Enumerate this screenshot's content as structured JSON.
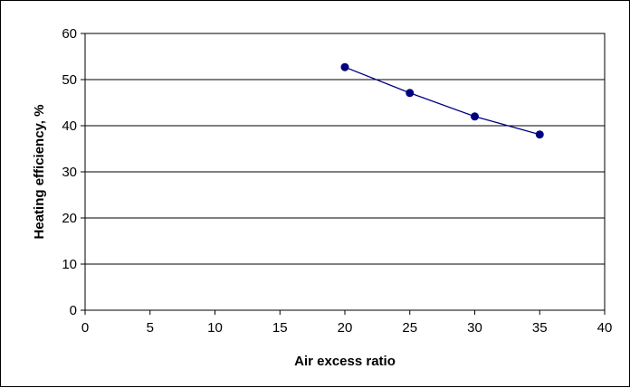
{
  "chart_data": {
    "type": "line",
    "title": "",
    "xlabel": "Air excess ratio",
    "ylabel": "Heating efficiency, %",
    "xlim": [
      0,
      40
    ],
    "ylim": [
      0,
      60
    ],
    "x_ticks": [
      0,
      5,
      10,
      15,
      20,
      25,
      30,
      35,
      40
    ],
    "y_ticks": [
      0,
      10,
      20,
      30,
      40,
      50,
      60
    ],
    "grid": "horizontal",
    "legend": "none",
    "series": [
      {
        "x": [
          20,
          25,
          30,
          35
        ],
        "y": [
          52.7,
          47.1,
          42.0,
          38.1
        ],
        "color": "#000080",
        "marker": "circle"
      }
    ]
  }
}
